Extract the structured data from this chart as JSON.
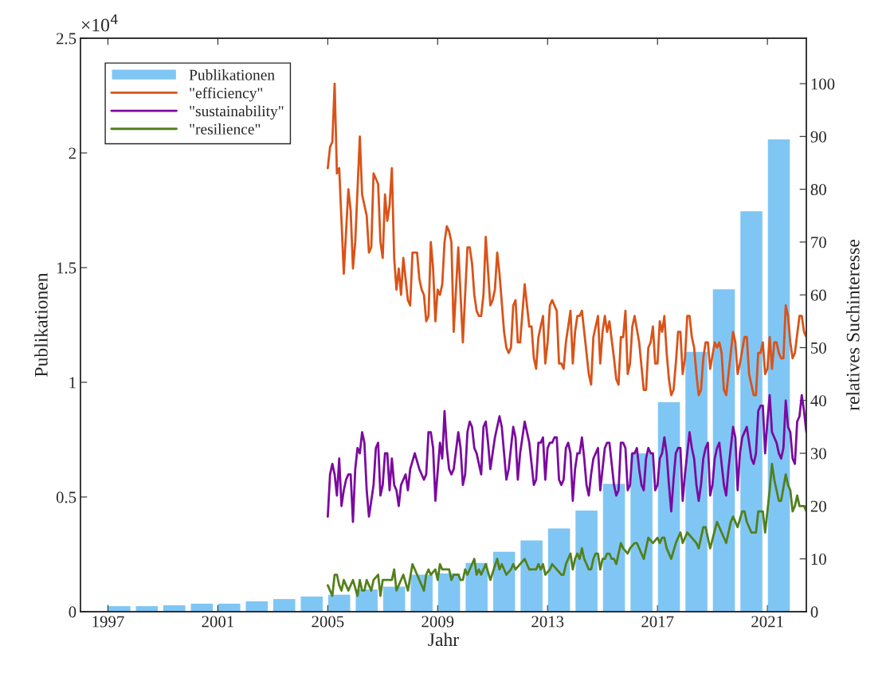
{
  "chart_data": {
    "type": "bar",
    "xlabel": "Jahr",
    "ylabel": "Publikationen",
    "y2label": "relatives Suchinteresse",
    "annotations": [
      "×10$^{4}$"
    ],
    "legend": "top left",
    "xlim": [
      "1996-01",
      "2022-06"
    ],
    "xticks": [
      {
        "value": "1997",
        "label": "1997"
      },
      {
        "value": "2001",
        "label": "2001"
      },
      {
        "value": "2005",
        "label": "2005"
      },
      {
        "value": "2009",
        "label": "2009"
      },
      {
        "value": "2013",
        "label": "2013"
      },
      {
        "value": "2017",
        "label": "2017"
      },
      {
        "value": "2021",
        "label": "2021"
      }
    ],
    "ylim": [
      0,
      2.5
    ],
    "yticks": [
      0,
      0.5,
      1,
      1.5,
      2,
      2.5
    ],
    "y2lim": [
      0,
      108.6
    ],
    "y2ticks": [
      0,
      10,
      20,
      30,
      40,
      50,
      60,
      70,
      80,
      90,
      100
    ],
    "series": [
      {
        "name": "Publikationen",
        "color": "#80c6f4",
        "x": [
          "1997-06",
          "1998-06",
          "1999-06",
          "2000-06",
          "2001-06",
          "2002-06",
          "2003-06",
          "2004-06",
          "2005-06",
          "2006-06",
          "2007-06",
          "2008-06",
          "2009-06",
          "2010-06",
          "2011-06",
          "2012-06",
          "2013-06",
          "2014-06",
          "2015-06",
          "2016-06",
          "2017-06",
          "2018-06",
          "2019-06",
          "2020-06",
          "2021-06"
        ],
        "values": [
          0.024,
          0.024,
          0.028,
          0.035,
          0.035,
          0.045,
          0.055,
          0.066,
          0.074,
          0.097,
          0.109,
          0.161,
          0.167,
          0.213,
          0.261,
          0.311,
          0.363,
          0.441,
          0.557,
          0.69,
          0.913,
          1.133,
          1.405,
          1.746,
          2.059
        ]
      },
      {
        "name": "\"efficiency\"",
        "type": "line",
        "axis": "y2",
        "color": "#d95319",
        "x": [
          "2005-01",
          "2005-02",
          "2005-03",
          "2005-04",
          "2005-05",
          "2005-06",
          "2005-08",
          "2005-10",
          "2005-11",
          "2005-12",
          "2006-01",
          "2006-03",
          "2006-04",
          "2006-06",
          "2006-07",
          "2006-08",
          "2006-09",
          "2006-11",
          "2006-12",
          "2007-01",
          "2007-02",
          "2007-03",
          "2007-04",
          "2007-05",
          "2007-06",
          "2007-07",
          "2007-08",
          "2007-09",
          "2007-10",
          "2007-12",
          "2008-01",
          "2008-02",
          "2008-04",
          "2008-05",
          "2008-06",
          "2008-07",
          "2008-08",
          "2008-09",
          "2008-10",
          "2008-11",
          "2008-12",
          "2009-01",
          "2009-02",
          "2009-03",
          "2009-04",
          "2009-05",
          "2009-06",
          "2009-07",
          "2009-08",
          "2009-10",
          "2009-12",
          "2010-02",
          "2010-03",
          "2010-04",
          "2010-05",
          "2010-06",
          "2010-07",
          "2010-08",
          "2010-09",
          "2010-10",
          "2010-12",
          "2011-01",
          "2011-02",
          "2011-03",
          "2011-04",
          "2011-06",
          "2011-07",
          "2011-08",
          "2011-09",
          "2011-10",
          "2011-11",
          "2011-12",
          "2012-01",
          "2012-03",
          "2012-05",
          "2012-06",
          "2012-07",
          "2012-08",
          "2012-09",
          "2012-11",
          "2012-12",
          "2013-01",
          "2013-02",
          "2013-03",
          "2013-05",
          "2013-06",
          "2013-07",
          "2013-08",
          "2013-09",
          "2013-11",
          "2013-12",
          "2014-01",
          "2014-02",
          "2014-03",
          "2014-04",
          "2014-06",
          "2014-07",
          "2014-08",
          "2014-09",
          "2014-10",
          "2014-11",
          "2014-12",
          "2015-01",
          "2015-02",
          "2015-03",
          "2015-04",
          "2015-06",
          "2015-07",
          "2015-08",
          "2015-09",
          "2015-10",
          "2015-11",
          "2015-12",
          "2016-01",
          "2016-02",
          "2016-03",
          "2016-05",
          "2016-07",
          "2016-08",
          "2016-09",
          "2016-10",
          "2016-11",
          "2016-12",
          "2017-01",
          "2017-02",
          "2017-03",
          "2017-04",
          "2017-05",
          "2017-06",
          "2017-07",
          "2017-08",
          "2017-09",
          "2017-10",
          "2017-11",
          "2017-12",
          "2018-01",
          "2018-02",
          "2018-03",
          "2018-04",
          "2018-05",
          "2018-06",
          "2018-07",
          "2018-08",
          "2018-09",
          "2018-10",
          "2018-11",
          "2018-12",
          "2019-02",
          "2019-03",
          "2019-04",
          "2019-05",
          "2019-06",
          "2019-07",
          "2019-08",
          "2019-10",
          "2019-11",
          "2019-12",
          "2020-01",
          "2020-03",
          "2020-04",
          "2020-05",
          "2020-06",
          "2020-07",
          "2020-08",
          "2020-09",
          "2020-10",
          "2020-11",
          "2020-12",
          "2021-01",
          "2021-02",
          "2021-03",
          "2021-04",
          "2021-05",
          "2021-06",
          "2021-07",
          "2021-08",
          "2021-09",
          "2021-10",
          "2021-11",
          "2021-12",
          "2022-01",
          "2022-03",
          "2022-04",
          "2022-05",
          "2022-06"
        ],
        "values": [
          84,
          88,
          89,
          100,
          83,
          84,
          64,
          80,
          76,
          65,
          70,
          90,
          79,
          75,
          68,
          69,
          83,
          81,
          70,
          67,
          79,
          74,
          77,
          84,
          67,
          61,
          65,
          60,
          67,
          59,
          58,
          68,
          68,
          63,
          61,
          60,
          55,
          56,
          70,
          65,
          55,
          61,
          60,
          62,
          70,
          73,
          72,
          70,
          53,
          69,
          51,
          69,
          69,
          66,
          60,
          57,
          56,
          56,
          60,
          71,
          58,
          59,
          61,
          68,
          64,
          53,
          50,
          49,
          50,
          58,
          59,
          51,
          51,
          62,
          54,
          54,
          48,
          46,
          52,
          56,
          47,
          51,
          58,
          59,
          57,
          47,
          47,
          46,
          51,
          57,
          47,
          53,
          56,
          56,
          57,
          49,
          45,
          43,
          52,
          54,
          56,
          47,
          53,
          56,
          53,
          55,
          48,
          44,
          43,
          52,
          52,
          57,
          45,
          47,
          54,
          56,
          51,
          42,
          42,
          50,
          51,
          54,
          47,
          47,
          55,
          53,
          56,
          49,
          44,
          41,
          42,
          47,
          53,
          53,
          45,
          48,
          56,
          56,
          52,
          50,
          45,
          41,
          42,
          48,
          51,
          51,
          46,
          51,
          50,
          51,
          49,
          42,
          41,
          45,
          53,
          51,
          45,
          47,
          52,
          52,
          45,
          43,
          41,
          41,
          49,
          49,
          51,
          45,
          46,
          52,
          46,
          51,
          51,
          49,
          48,
          48,
          58,
          56,
          51,
          48,
          49,
          56,
          56,
          53,
          52
        ]
      },
      {
        "name": "\"sustainability\"",
        "type": "line",
        "axis": "y2",
        "color": "#7b0a9f",
        "x": [
          "2005-01",
          "2005-02",
          "2005-03",
          "2005-04",
          "2005-05",
          "2005-06",
          "2005-07",
          "2005-08",
          "2005-09",
          "2005-10",
          "2005-11",
          "2005-12",
          "2006-01",
          "2006-02",
          "2006-03",
          "2006-04",
          "2006-05",
          "2006-06",
          "2006-07",
          "2006-08",
          "2006-09",
          "2006-10",
          "2006-11",
          "2006-12",
          "2007-01",
          "2007-02",
          "2007-03",
          "2007-04",
          "2007-05",
          "2007-06",
          "2007-07",
          "2007-08",
          "2007-09",
          "2007-10",
          "2007-11",
          "2007-12",
          "2008-01",
          "2008-03",
          "2008-05",
          "2008-07",
          "2008-08",
          "2008-09",
          "2008-10",
          "2008-11",
          "2008-12",
          "2009-02",
          "2009-03",
          "2009-04",
          "2009-05",
          "2009-06",
          "2009-07",
          "2009-08",
          "2009-10",
          "2009-11",
          "2009-12",
          "2010-01",
          "2010-02",
          "2010-03",
          "2010-04",
          "2010-05",
          "2010-06",
          "2010-08",
          "2010-09",
          "2010-10",
          "2010-11",
          "2010-12",
          "2011-02",
          "2011-04",
          "2011-05",
          "2011-07",
          "2011-08",
          "2011-10",
          "2011-11",
          "2011-12",
          "2012-01",
          "2012-03",
          "2012-04",
          "2012-05",
          "2012-07",
          "2012-08",
          "2012-09",
          "2012-10",
          "2012-11",
          "2012-12",
          "2013-01",
          "2013-02",
          "2013-03",
          "2013-04",
          "2013-05",
          "2013-06",
          "2013-07",
          "2013-08",
          "2013-09",
          "2013-10",
          "2013-11",
          "2013-12",
          "2014-01",
          "2014-02",
          "2014-03",
          "2014-04",
          "2014-05",
          "2014-06",
          "2014-07",
          "2014-08",
          "2014-09",
          "2014-11",
          "2014-12",
          "2015-01",
          "2015-02",
          "2015-03",
          "2015-04",
          "2015-05",
          "2015-06",
          "2015-07",
          "2015-08",
          "2015-09",
          "2015-10",
          "2015-11",
          "2015-12",
          "2016-01",
          "2016-02",
          "2016-03",
          "2016-04",
          "2016-05",
          "2016-06",
          "2016-07",
          "2016-08",
          "2016-09",
          "2016-10",
          "2016-11",
          "2016-12",
          "2017-01",
          "2017-02",
          "2017-03",
          "2017-04",
          "2017-05",
          "2017-06",
          "2017-07",
          "2017-08",
          "2017-09",
          "2017-10",
          "2017-11",
          "2017-12",
          "2018-01",
          "2018-02",
          "2018-03",
          "2018-04",
          "2018-05",
          "2018-06",
          "2018-07",
          "2018-08",
          "2018-09",
          "2018-10",
          "2018-11",
          "2018-12",
          "2019-01",
          "2019-02",
          "2019-03",
          "2019-04",
          "2019-05",
          "2019-06",
          "2019-07",
          "2019-08",
          "2019-09",
          "2019-10",
          "2019-11",
          "2019-12",
          "2020-01",
          "2020-02",
          "2020-03",
          "2020-04",
          "2020-05",
          "2020-06",
          "2020-07",
          "2020-08",
          "2020-09",
          "2020-10",
          "2020-11",
          "2020-12",
          "2021-01",
          "2021-02",
          "2021-03",
          "2021-04",
          "2021-05",
          "2021-06",
          "2021-07",
          "2021-08",
          "2021-09",
          "2021-10",
          "2021-11",
          "2021-12",
          "2022-01",
          "2022-02",
          "2022-03",
          "2022-04",
          "2022-05",
          "2022-06"
        ],
        "values": [
          18,
          26,
          28,
          26,
          22,
          29,
          20,
          23,
          25,
          26,
          26,
          17,
          27,
          31,
          30,
          34,
          32,
          23,
          18,
          21,
          24,
          31,
          32,
          22,
          24,
          30,
          30,
          23,
          29,
          24,
          23,
          20,
          24,
          25,
          26,
          23,
          27,
          30,
          27,
          25,
          26,
          34,
          34,
          31,
          21,
          32,
          29,
          38,
          31,
          27,
          26,
          27,
          34,
          31,
          24,
          26,
          34,
          36,
          35,
          31,
          30,
          26,
          35,
          36,
          32,
          27,
          33,
          37,
          35,
          25,
          27,
          35,
          33,
          25,
          30,
          36,
          34,
          32,
          24,
          25,
          32,
          32,
          33,
          25,
          31,
          32,
          32,
          33,
          33,
          25,
          24,
          25,
          31,
          32,
          30,
          21,
          27,
          30,
          30,
          33,
          29,
          24,
          22,
          26,
          29,
          31,
          23,
          27,
          31,
          32,
          32,
          28,
          24,
          22,
          23,
          32,
          32,
          31,
          23,
          24,
          30,
          30,
          31,
          27,
          24,
          23,
          29,
          31,
          30,
          30,
          23,
          24,
          29,
          30,
          33,
          30,
          24,
          19,
          25,
          30,
          31,
          31,
          21,
          26,
          30,
          34,
          31,
          29,
          24,
          21,
          24,
          29,
          31,
          32,
          22,
          24,
          29,
          31,
          32,
          28,
          24,
          22,
          27,
          31,
          35,
          33,
          23,
          30,
          33,
          34,
          35,
          32,
          29,
          28,
          30,
          38,
          39,
          39,
          30,
          36,
          41,
          34,
          33,
          32,
          30,
          29,
          31,
          40,
          35,
          34,
          29,
          28,
          36,
          37,
          41,
          38,
          34
        ]
      },
      {
        "name": "\"resilience\"",
        "type": "line",
        "axis": "y2",
        "color": "#53801c",
        "x": [
          "2005-01",
          "2005-03",
          "2005-04",
          "2005-05",
          "2005-06",
          "2005-07",
          "2005-08",
          "2005-09",
          "2005-10",
          "2005-12",
          "2006-02",
          "2006-03",
          "2006-04",
          "2006-05",
          "2006-06",
          "2006-07",
          "2006-08",
          "2006-09",
          "2006-11",
          "2006-12",
          "2007-01",
          "2007-05",
          "2007-06",
          "2007-07",
          "2007-10",
          "2007-12",
          "2008-02",
          "2008-04",
          "2008-07",
          "2008-08",
          "2008-09",
          "2008-10",
          "2008-12",
          "2009-01",
          "2009-02",
          "2009-03",
          "2009-06",
          "2009-07",
          "2009-08",
          "2009-10",
          "2009-11",
          "2009-12",
          "2010-01",
          "2010-02",
          "2010-05",
          "2010-06",
          "2010-07",
          "2010-08",
          "2010-10",
          "2010-12",
          "2011-03",
          "2011-04",
          "2011-05",
          "2011-07",
          "2011-09",
          "2011-10",
          "2011-11",
          "2012-03",
          "2012-05",
          "2012-08",
          "2012-09",
          "2012-10",
          "2012-11",
          "2012-12",
          "2013-02",
          "2013-03",
          "2013-05",
          "2013-07",
          "2013-08",
          "2013-09",
          "2013-11",
          "2013-12",
          "2014-01",
          "2014-02",
          "2014-03",
          "2014-04",
          "2014-05",
          "2014-06",
          "2014-07",
          "2014-08",
          "2014-09",
          "2014-10",
          "2014-11",
          "2014-12",
          "2015-01",
          "2015-02",
          "2015-03",
          "2015-04",
          "2015-05",
          "2015-06",
          "2015-07",
          "2015-09",
          "2015-10",
          "2015-12",
          "2016-01",
          "2016-03",
          "2016-04",
          "2016-05",
          "2016-07",
          "2016-09",
          "2016-11",
          "2017-01",
          "2017-02",
          "2017-03",
          "2017-04",
          "2017-05",
          "2017-07",
          "2017-09",
          "2017-11",
          "2017-12",
          "2018-02",
          "2018-04",
          "2018-06",
          "2018-07",
          "2018-09",
          "2018-10",
          "2018-12",
          "2019-03",
          "2019-05",
          "2019-07",
          "2019-09",
          "2019-10",
          "2019-12",
          "2020-02",
          "2020-03",
          "2020-04",
          "2020-06",
          "2020-08",
          "2020-09",
          "2020-11",
          "2020-12",
          "2021-02",
          "2021-03",
          "2021-04",
          "2021-06",
          "2021-07",
          "2021-09",
          "2021-10",
          "2021-11",
          "2021-12",
          "2022-01",
          "2022-02",
          "2022-03",
          "2022-05",
          "2022-06"
        ],
        "values": [
          5,
          3,
          7,
          7,
          5,
          4,
          6,
          5,
          4,
          6,
          3,
          6,
          4,
          4,
          6,
          5,
          4,
          6,
          7,
          3,
          6,
          6,
          8,
          4,
          7,
          4,
          9,
          7,
          4,
          7,
          8,
          7,
          8,
          6,
          9,
          8,
          8,
          6,
          7,
          7,
          6,
          6,
          8,
          7,
          10,
          7,
          8,
          7,
          9,
          6,
          10,
          8,
          9,
          7,
          8,
          9,
          8,
          10,
          8,
          8,
          9,
          8,
          9,
          7,
          8,
          9,
          8,
          7,
          7,
          9,
          11,
          8,
          10,
          11,
          10,
          12,
          10,
          9,
          8,
          8,
          10,
          11,
          11,
          8,
          10,
          10,
          11,
          11,
          10,
          10,
          9,
          13,
          12,
          11,
          12,
          13,
          13,
          12,
          10,
          14,
          13,
          14,
          13,
          14,
          14,
          12,
          10,
          13,
          15,
          13,
          15,
          14,
          13,
          12,
          16,
          16,
          12,
          17,
          15,
          13,
          17,
          18,
          16,
          19,
          19,
          17,
          15,
          15,
          19,
          19,
          15,
          23,
          28,
          25,
          21,
          21,
          26,
          24,
          23,
          19,
          20,
          22,
          20,
          20,
          19
        ]
      }
    ]
  }
}
